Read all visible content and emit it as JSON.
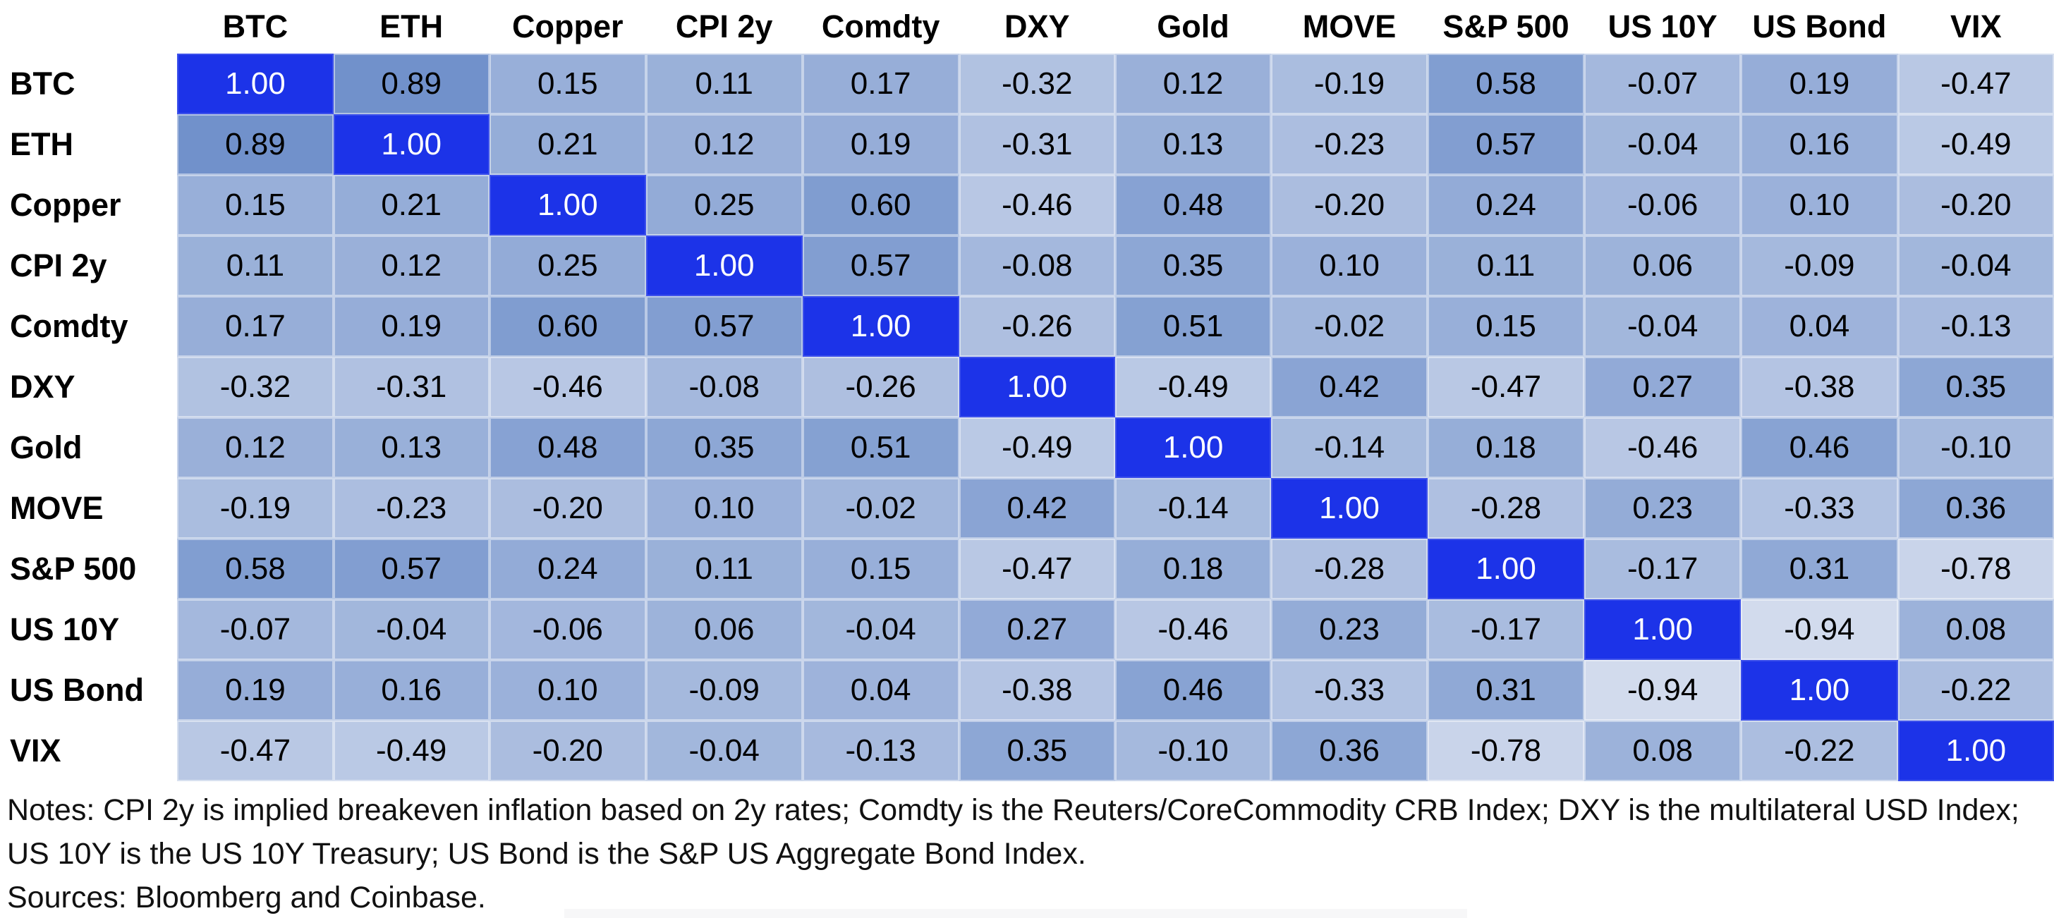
{
  "chart_data": {
    "type": "heatmap",
    "title": "",
    "xlabel": "",
    "ylabel": "",
    "legend": "none",
    "grid": false,
    "categories": [
      "BTC",
      "ETH",
      "Copper",
      "CPI 2y",
      "Comdty",
      "DXY",
      "Gold",
      "MOVE",
      "S&P 500",
      "US 10Y",
      "US Bond",
      "VIX"
    ],
    "matrix": [
      [
        1.0,
        0.89,
        0.15,
        0.11,
        0.17,
        -0.32,
        0.12,
        -0.19,
        0.58,
        -0.07,
        0.19,
        -0.47
      ],
      [
        0.89,
        1.0,
        0.21,
        0.12,
        0.19,
        -0.31,
        0.13,
        -0.23,
        0.57,
        -0.04,
        0.16,
        -0.49
      ],
      [
        0.15,
        0.21,
        1.0,
        0.25,
        0.6,
        -0.46,
        0.48,
        -0.2,
        0.24,
        -0.06,
        0.1,
        -0.2
      ],
      [
        0.11,
        0.12,
        0.25,
        1.0,
        0.57,
        -0.08,
        0.35,
        0.1,
        0.11,
        0.06,
        -0.09,
        -0.04
      ],
      [
        0.17,
        0.19,
        0.6,
        0.57,
        1.0,
        -0.26,
        0.51,
        -0.02,
        0.15,
        -0.04,
        0.04,
        -0.13
      ],
      [
        -0.32,
        -0.31,
        -0.46,
        -0.08,
        -0.26,
        1.0,
        -0.49,
        0.42,
        -0.47,
        0.27,
        -0.38,
        0.35
      ],
      [
        0.12,
        0.13,
        0.48,
        0.35,
        0.51,
        -0.49,
        1.0,
        -0.14,
        0.18,
        -0.46,
        0.46,
        -0.1
      ],
      [
        -0.19,
        -0.23,
        -0.2,
        0.1,
        -0.02,
        0.42,
        -0.14,
        1.0,
        -0.28,
        0.23,
        -0.33,
        0.36
      ],
      [
        0.58,
        0.57,
        0.24,
        0.11,
        0.15,
        -0.47,
        0.18,
        -0.28,
        1.0,
        -0.17,
        0.31,
        -0.78
      ],
      [
        -0.07,
        -0.04,
        -0.06,
        0.06,
        -0.04,
        0.27,
        -0.46,
        0.23,
        -0.17,
        1.0,
        -0.94,
        0.08
      ],
      [
        0.19,
        0.16,
        0.1,
        -0.09,
        0.04,
        -0.38,
        0.46,
        -0.33,
        0.31,
        -0.94,
        1.0,
        -0.22
      ],
      [
        -0.47,
        -0.49,
        -0.2,
        -0.04,
        -0.13,
        0.35,
        -0.1,
        0.36,
        -0.78,
        0.08,
        -0.22,
        1.0
      ]
    ],
    "value_format": "0.00",
    "colorscale": {
      "domain": [
        -1,
        1
      ],
      "min_color": "#d5ddee",
      "max_color": "#6b8dc9",
      "diagonal_color": "#1c33e8",
      "diagonal_text_color": "#ffffff",
      "cell_text_color": "#000000"
    }
  },
  "footer": {
    "notes": "Notes: CPI 2y is implied breakeven inflation based on 2y rates; Comdty is the Reuters/CoreCommodity CRB Index; DXY is the multilateral USD Index; US 10Y is the US 10Y Treasury; US Bond is the S&P US Aggregate Bond Index.",
    "sources": "Sources: Bloomberg and Coinbase."
  }
}
